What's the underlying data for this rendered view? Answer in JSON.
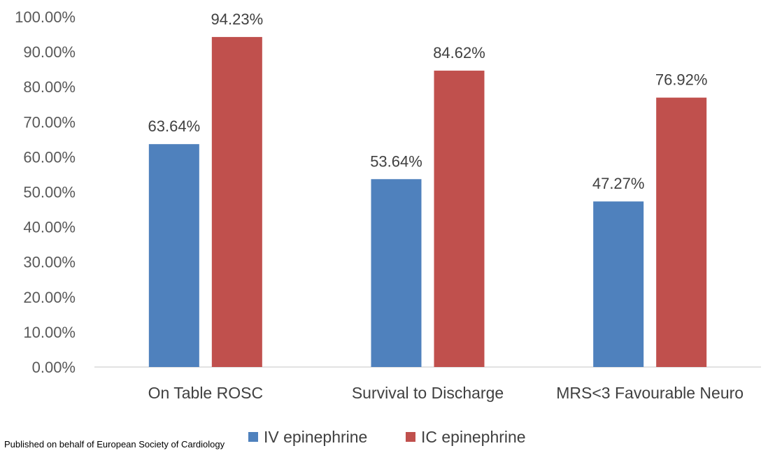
{
  "chart_data": {
    "type": "bar",
    "categories": [
      "On Table ROSC",
      "Survival to Discharge",
      "MRS<3 Favourable Neuro"
    ],
    "series": [
      {
        "name": "IV epinephrine",
        "values": [
          63.64,
          53.64,
          47.27
        ],
        "color": "#4F81BD",
        "labels": [
          "63.64%",
          "53.64%",
          "47.27%"
        ]
      },
      {
        "name": "IC epinephrine",
        "values": [
          94.23,
          84.62,
          76.92
        ],
        "color": "#C0504D",
        "labels": [
          "94.23%",
          "84.62%",
          "76.92%"
        ]
      }
    ],
    "ylim": [
      0,
      100
    ],
    "yticks": [
      "0.00%",
      "10.00%",
      "20.00%",
      "30.00%",
      "40.00%",
      "50.00%",
      "60.00%",
      "70.00%",
      "80.00%",
      "90.00%",
      "100.00%"
    ],
    "grid": false,
    "legend_position": "bottom"
  },
  "footer": {
    "text": "Published on behalf of European Society of Cardiology"
  }
}
